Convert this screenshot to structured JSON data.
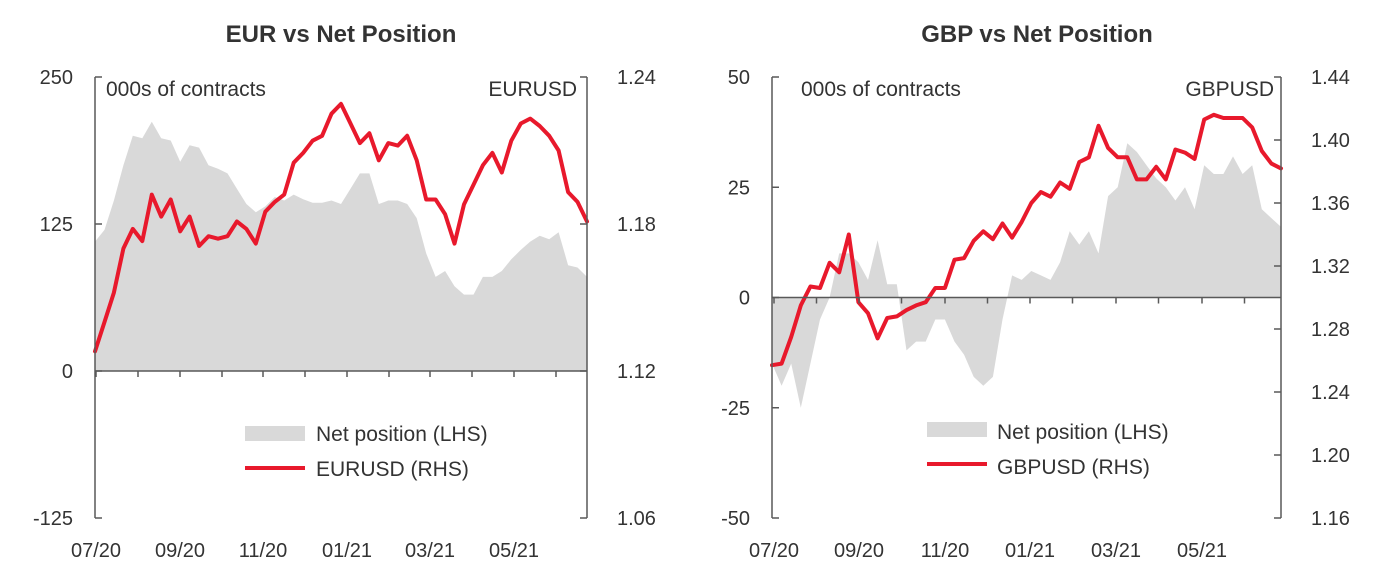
{
  "chart_data": [
    {
      "type": "area",
      "title": "EUR  vs Net Position",
      "left_axis_label": "000s of contracts",
      "right_axis_label": "EURUSD",
      "x_ticks": [
        "07/20",
        "09/20",
        "11/20",
        "01/21",
        "03/21",
        "05/21"
      ],
      "ylim_left": [
        -125,
        250
      ],
      "yticks_left": [
        "250",
        "125",
        "0",
        "-125"
      ],
      "ylim_right": [
        1.06,
        1.24
      ],
      "yticks_right": [
        "1.24",
        "1.18",
        "1.12",
        "1.06"
      ],
      "legend": {
        "area": "Net position (LHS)",
        "line": "EURUSD (RHS)"
      },
      "colors": {
        "area": "#d9d9d9",
        "line": "#e8192c"
      },
      "series": [
        {
          "name": "Net position (LHS)",
          "axis": "left",
          "values": [
            110,
            120,
            145,
            175,
            200,
            198,
            212,
            198,
            196,
            178,
            192,
            190,
            175,
            172,
            168,
            155,
            142,
            135,
            140,
            148,
            145,
            150,
            146,
            143,
            143,
            145,
            142,
            155,
            168,
            168,
            142,
            145,
            145,
            142,
            130,
            100,
            80,
            85,
            72,
            65,
            65,
            80,
            80,
            85,
            95,
            103,
            110,
            115,
            112,
            118,
            90,
            88,
            80
          ]
        },
        {
          "name": "EURUSD (RHS)",
          "axis": "right",
          "values": [
            1.128,
            1.14,
            1.152,
            1.17,
            1.178,
            1.173,
            1.192,
            1.183,
            1.19,
            1.177,
            1.183,
            1.171,
            1.175,
            1.174,
            1.175,
            1.181,
            1.178,
            1.172,
            1.185,
            1.189,
            1.192,
            1.205,
            1.209,
            1.214,
            1.216,
            1.225,
            1.229,
            1.221,
            1.213,
            1.217,
            1.206,
            1.213,
            1.212,
            1.216,
            1.206,
            1.19,
            1.19,
            1.184,
            1.172,
            1.188,
            1.196,
            1.204,
            1.209,
            1.201,
            1.214,
            1.221,
            1.223,
            1.22,
            1.216,
            1.21,
            1.193,
            1.189,
            1.181
          ]
        }
      ]
    },
    {
      "type": "area",
      "title": "GBP  vs Net Position",
      "left_axis_label": "000s of contracts",
      "right_axis_label": "GBPUSD",
      "x_ticks": [
        "07/20",
        "09/20",
        "11/20",
        "01/21",
        "03/21",
        "05/21"
      ],
      "ylim_left": [
        -50,
        50
      ],
      "yticks_left": [
        "50",
        "25",
        "0",
        "-25",
        "-50"
      ],
      "ylim_right": [
        1.16,
        1.44
      ],
      "yticks_right": [
        "1.44",
        "1.40",
        "1.36",
        "1.32",
        "1.28",
        "1.24",
        "1.20",
        "1.16"
      ],
      "legend": {
        "area": "Net position (LHS)",
        "line": "GBPUSD (RHS)"
      },
      "colors": {
        "area": "#d9d9d9",
        "line": "#e8192c"
      },
      "series": [
        {
          "name": "Net position (LHS)",
          "axis": "left",
          "values": [
            -15,
            -20,
            -15,
            -25,
            -15,
            -5,
            0,
            10,
            10,
            8,
            4,
            13,
            3,
            3,
            -12,
            -10,
            -10,
            -5,
            -5,
            -10,
            -13,
            -18,
            -20,
            -18,
            -5,
            5,
            4,
            6,
            5,
            4,
            8,
            15,
            12,
            15,
            10,
            23,
            25,
            35,
            33,
            30,
            27,
            25,
            22,
            25,
            20,
            30,
            28,
            28,
            32,
            28,
            30,
            20,
            18,
            16
          ]
        },
        {
          "name": "GBPUSD (RHS)",
          "axis": "right",
          "values": [
            1.257,
            1.258,
            1.275,
            1.295,
            1.307,
            1.306,
            1.322,
            1.316,
            1.34,
            1.297,
            1.29,
            1.274,
            1.287,
            1.288,
            1.292,
            1.295,
            1.297,
            1.306,
            1.306,
            1.324,
            1.325,
            1.336,
            1.342,
            1.337,
            1.347,
            1.338,
            1.348,
            1.36,
            1.367,
            1.364,
            1.373,
            1.369,
            1.386,
            1.389,
            1.409,
            1.395,
            1.389,
            1.389,
            1.375,
            1.375,
            1.383,
            1.375,
            1.394,
            1.392,
            1.388,
            1.413,
            1.416,
            1.414,
            1.414,
            1.414,
            1.408,
            1.393,
            1.385,
            1.382
          ]
        }
      ]
    }
  ]
}
